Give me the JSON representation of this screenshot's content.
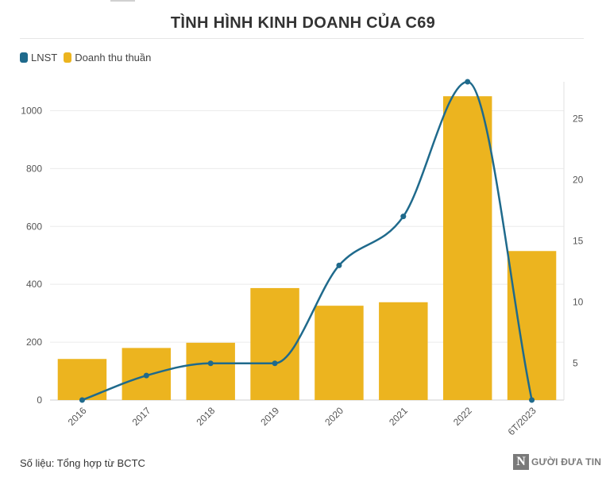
{
  "header": {
    "title": "TÌNH HÌNH KINH DOANH CỦA C69"
  },
  "legend": [
    {
      "label": "LNST",
      "color": "#1f6a8c"
    },
    {
      "label": "Doanh thu thuần",
      "color": "#ecb41f"
    }
  ],
  "footer": {
    "source": "Số liệu: Tổng hợp từ BCTC",
    "brand_letter": "N",
    "brand_text": "GƯỜI ĐƯA TIN"
  },
  "chart_data": {
    "type": "bar+line",
    "title": "TÌNH HÌNH KINH DOANH CỦA C69",
    "categories": [
      "2016",
      "2017",
      "2018",
      "2019",
      "2020",
      "2021",
      "2022",
      "6T/2023"
    ],
    "series": [
      {
        "name": "Doanh thu thuần",
        "type": "bar",
        "axis": "left",
        "color": "#ecb41f",
        "values": [
          142,
          180,
          198,
          387,
          326,
          338,
          1050,
          515
        ]
      },
      {
        "name": "LNST",
        "type": "line",
        "axis": "right",
        "color": "#1f6a8c",
        "values": [
          2,
          4,
          5,
          5,
          13,
          17,
          28,
          2
        ]
      }
    ],
    "y_left": {
      "min": 0,
      "max": 1100,
      "ticks": [
        0,
        200,
        400,
        600,
        800,
        1000
      ]
    },
    "y_right": {
      "min": 2,
      "max": 28,
      "ticks": [
        5,
        10,
        15,
        20,
        25
      ]
    },
    "grid": true,
    "legend_position": "top-left"
  }
}
